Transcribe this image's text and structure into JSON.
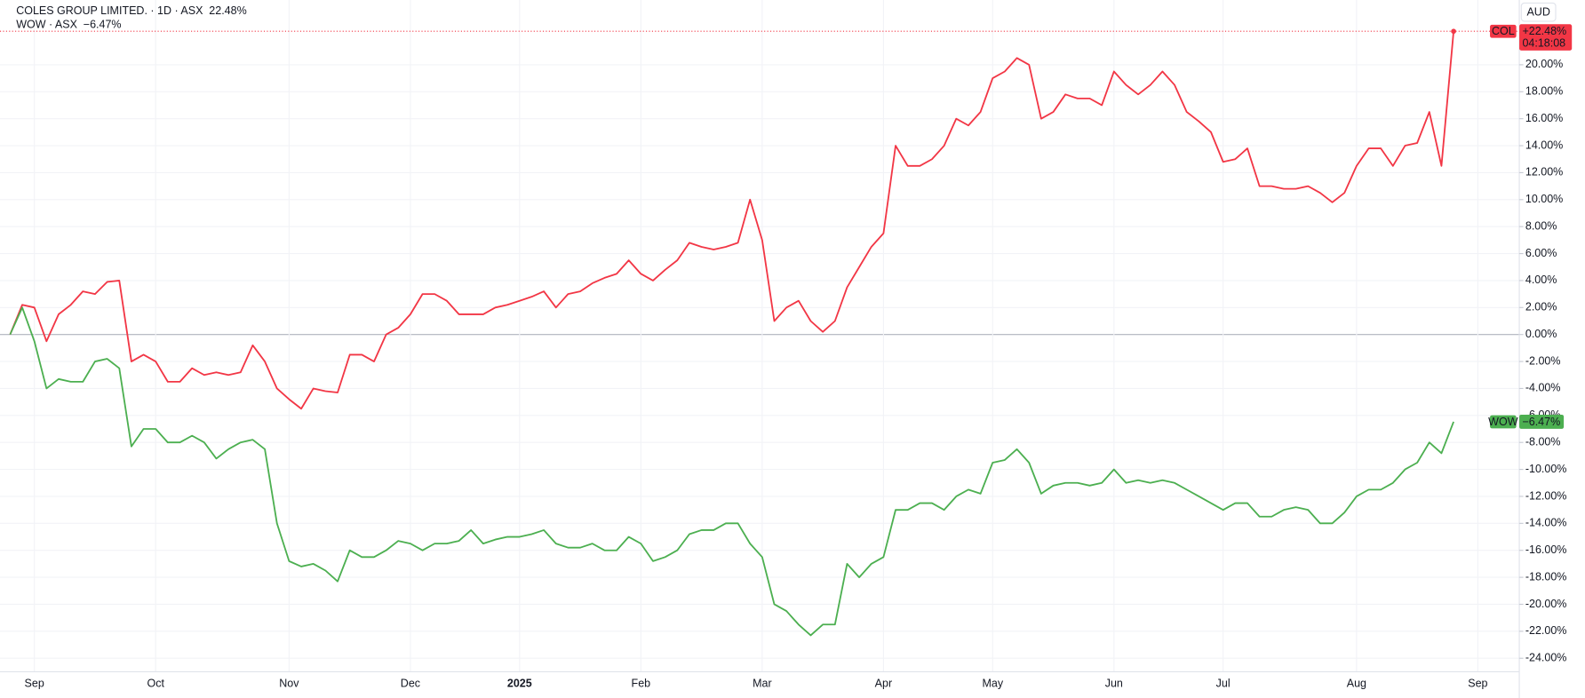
{
  "chart_data": {
    "type": "line",
    "currency": "AUD",
    "categories": [
      null,
      null,
      "Sep",
      null,
      null,
      null,
      null,
      null,
      null,
      null,
      null,
      null,
      "Oct",
      null,
      null,
      null,
      null,
      null,
      null,
      null,
      null,
      null,
      null,
      "Nov",
      null,
      null,
      null,
      null,
      null,
      null,
      null,
      null,
      null,
      "Dec",
      null,
      null,
      null,
      null,
      null,
      null,
      null,
      null,
      "2025",
      null,
      null,
      null,
      null,
      null,
      null,
      null,
      null,
      null,
      "Feb",
      null,
      null,
      null,
      null,
      null,
      null,
      null,
      null,
      null,
      "Mar",
      null,
      null,
      null,
      null,
      null,
      null,
      null,
      null,
      null,
      "Apr",
      null,
      null,
      null,
      null,
      null,
      null,
      null,
      null,
      "May",
      null,
      null,
      null,
      null,
      null,
      null,
      null,
      null,
      null,
      "Jun",
      null,
      null,
      null,
      null,
      null,
      null,
      null,
      null,
      "Jul",
      null,
      null,
      null,
      null,
      null,
      null,
      null,
      null,
      null,
      null,
      "Aug",
      null,
      null,
      null,
      null,
      null,
      null,
      null,
      null,
      null,
      "Sep",
      null,
      null,
      null
    ],
    "series": [
      {
        "name": "COLES GROUP LIMITED. · 1D · ASX",
        "change_label": "22.48%",
        "badge": "COL",
        "badge_label": "+22.48%",
        "countdown": "04:18:08",
        "color": "#f23645",
        "values": [
          0,
          2.2,
          2.0,
          -0.5,
          1.5,
          2.2,
          3.2,
          3.0,
          3.9,
          4.0,
          -2.0,
          -1.5,
          -2.0,
          -3.5,
          -3.5,
          -2.5,
          -3.0,
          -2.8,
          -3.0,
          -2.8,
          -0.8,
          -2.0,
          -4.0,
          -4.8,
          -5.5,
          -4.0,
          -4.2,
          -4.3,
          -1.5,
          -1.5,
          -2.0,
          0.0,
          0.5,
          1.5,
          3.0,
          3.0,
          2.5,
          1.5,
          1.5,
          1.5,
          2.0,
          2.2,
          2.5,
          2.8,
          3.2,
          2.0,
          3.0,
          3.2,
          3.8,
          4.2,
          4.5,
          5.5,
          4.5,
          4.0,
          4.8,
          5.5,
          6.8,
          6.5,
          6.3,
          6.5,
          6.8,
          10.0,
          7.0,
          1.0,
          2.0,
          2.5,
          1.0,
          0.2,
          1.0,
          3.5,
          5.0,
          6.5,
          7.5,
          14.0,
          12.5,
          12.5,
          13.0,
          14.0,
          16.0,
          15.5,
          16.5,
          19.0,
          19.5,
          20.5,
          20.0,
          16.0,
          16.5,
          17.8,
          17.5,
          17.5,
          17.0,
          19.5,
          18.5,
          17.8,
          18.5,
          19.5,
          18.5,
          16.5,
          15.8,
          15.0,
          12.8,
          13.0,
          13.8,
          11.0,
          11.0,
          10.8,
          10.8,
          11.0,
          10.5,
          9.8,
          10.5,
          12.5,
          13.8,
          13.8,
          12.5,
          14.0,
          14.2,
          16.5,
          12.5,
          22.48,
          null,
          null,
          null,
          null,
          null
        ]
      },
      {
        "name": "WOW · ASX",
        "change_label": "−6.47%",
        "badge": "WOW",
        "badge_label": "−6.47%",
        "color": "#4caf50",
        "values": [
          0,
          2.0,
          -0.5,
          -4.0,
          -3.3,
          -3.5,
          -3.5,
          -2.0,
          -1.8,
          -2.5,
          -8.3,
          -7.0,
          -7.0,
          -8.0,
          -8.0,
          -7.5,
          -8.0,
          -9.2,
          -8.5,
          -8.0,
          -7.8,
          -8.5,
          -14.0,
          -16.8,
          -17.2,
          -17.0,
          -17.5,
          -18.3,
          -16.0,
          -16.5,
          -16.5,
          -16.0,
          -15.3,
          -15.5,
          -16.0,
          -15.5,
          -15.5,
          -15.3,
          -14.5,
          -15.5,
          -15.2,
          -15.0,
          -15.0,
          -14.8,
          -14.5,
          -15.5,
          -15.8,
          -15.8,
          -15.5,
          -16.0,
          -16.0,
          -15.0,
          -15.5,
          -16.8,
          -16.5,
          -16.0,
          -14.8,
          -14.5,
          -14.5,
          -14.0,
          -14.0,
          -15.5,
          -16.5,
          -20.0,
          -20.5,
          -21.5,
          -22.3,
          -21.5,
          -21.5,
          -17.0,
          -18.0,
          -17.0,
          -16.5,
          -13.0,
          -13.0,
          -12.5,
          -12.5,
          -13.0,
          -12.0,
          -11.5,
          -11.8,
          -9.5,
          -9.3,
          -8.5,
          -9.5,
          -11.8,
          -11.2,
          -11.0,
          -11.0,
          -11.2,
          -11.0,
          -10.0,
          -11.0,
          -10.8,
          -11.0,
          -10.8,
          -11.0,
          -11.5,
          -12.0,
          -12.5,
          -13.0,
          -12.5,
          -12.5,
          -13.5,
          -13.5,
          -13.0,
          -12.8,
          -13.0,
          -14.0,
          -14.0,
          -13.2,
          -12.0,
          -11.5,
          -11.5,
          -11.0,
          -10.0,
          -9.5,
          -8.0,
          -8.8,
          -6.47,
          null,
          null,
          null,
          null,
          null
        ]
      }
    ],
    "ylim": [
      -25,
      24.8
    ],
    "yticks": [
      {
        "value": -24,
        "label": "-24.00%"
      },
      {
        "value": -22,
        "label": "-22.00%"
      },
      {
        "value": -20,
        "label": "-20.00%"
      },
      {
        "value": -18,
        "label": "-18.00%"
      },
      {
        "value": -16,
        "label": "-16.00%"
      },
      {
        "value": -14,
        "label": "-14.00%"
      },
      {
        "value": -12,
        "label": "-12.00%"
      },
      {
        "value": -10,
        "label": "-10.00%"
      },
      {
        "value": -8,
        "label": "-8.00%"
      },
      {
        "value": -6,
        "label": "-6.00%"
      },
      {
        "value": -4,
        "label": "-4.00%"
      },
      {
        "value": -2,
        "label": "-2.00%"
      },
      {
        "value": 0,
        "label": "0.00%"
      },
      {
        "value": 2,
        "label": "2.00%"
      },
      {
        "value": 4,
        "label": "4.00%"
      },
      {
        "value": 6,
        "label": "6.00%"
      },
      {
        "value": 8,
        "label": "8.00%"
      },
      {
        "value": 10,
        "label": "10.00%"
      },
      {
        "value": 12,
        "label": "12.00%"
      },
      {
        "value": 14,
        "label": "14.00%"
      },
      {
        "value": 16,
        "label": "16.00%"
      },
      {
        "value": 18,
        "label": "18.00%"
      },
      {
        "value": 20,
        "label": "20.00%"
      }
    ],
    "grid": true
  }
}
